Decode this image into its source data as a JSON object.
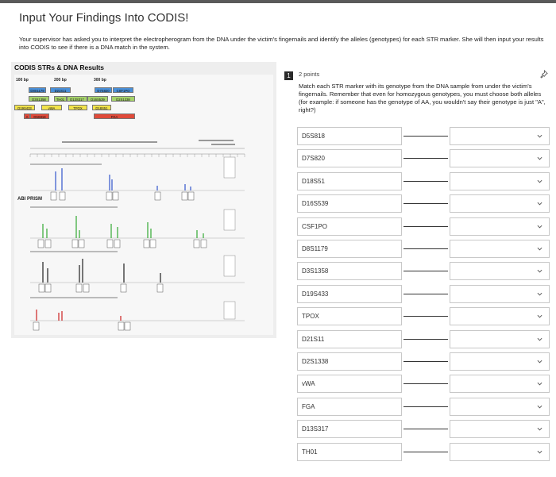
{
  "page": {
    "title": "Input Your Findings Into CODIS!",
    "intro": "Your supervisor has asked you to interpret the electropherogram from the DNA under the victim's fingernails and identify the alleles (genotypes) for each STR marker. She will then input your results into CODIS to see if there is a DNA match in the system."
  },
  "figure": {
    "title": "CODIS STRs & DNA Results",
    "bp_labels": [
      "100 bp",
      "200 bp",
      "300 bp"
    ],
    "loci_rows": [
      [
        {
          "label": "D8S1179",
          "color": "#4a90d9"
        },
        {
          "label": "D21S11",
          "color": "#4a90d9"
        },
        {
          "label": "D7S820",
          "color": "#4a90d9"
        },
        {
          "label": "CSF1PO",
          "color": "#4a90d9"
        }
      ],
      [
        {
          "label": "D3S1358",
          "color": "#a6d36a"
        },
        {
          "label": "TH01",
          "color": "#a6d36a"
        },
        {
          "label": "D13S317",
          "color": "#a6d36a"
        },
        {
          "label": "D16S539",
          "color": "#a6d36a"
        },
        {
          "label": "D2S1338",
          "color": "#a6d36a"
        }
      ],
      [
        {
          "label": "D19S433",
          "color": "#f2e34a"
        },
        {
          "label": "vWA",
          "color": "#f2e34a"
        },
        {
          "label": "TPOX",
          "color": "#f2e34a"
        },
        {
          "label": "D18S51",
          "color": "#f2e34a"
        }
      ],
      [
        {
          "label": "A",
          "color": "#e04a3a"
        },
        {
          "label": "D5S818",
          "color": "#e04a3a"
        },
        {
          "label": "FGA",
          "color": "#e04a3a"
        }
      ]
    ],
    "brand": "ABI PRISM",
    "panel_colors": [
      "#3355cc",
      "#33aa33",
      "#222222",
      "#cc2222"
    ]
  },
  "question": {
    "number": "1",
    "points": "2 points",
    "prompt": "Match each STR marker with its genotype from the DNA sample from under the victim's fingernails. Remember that even for homozygous genotypes, you must choose both alleles (for example: if someone has the genotype of AA, you wouldn't say their genotype is just \"A\", right?)",
    "pin_icon": "pin-icon",
    "select_placeholder": "",
    "markers": [
      "D5S818",
      "D7S820",
      "D18S51",
      "D16S539",
      "CSF1PO",
      "D8S1179",
      "D3S1358",
      "D19S433",
      "TPOX",
      "D21S11",
      "D2S1338",
      "vWA",
      "FGA",
      "D13S317",
      "TH01"
    ]
  }
}
